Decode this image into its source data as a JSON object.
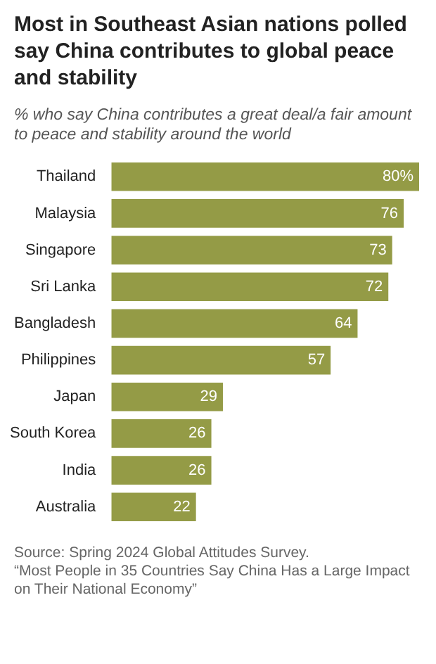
{
  "chart_data": {
    "type": "bar",
    "orientation": "horizontal",
    "title": "Most in Southeast Asian nations polled say China contributes to global peace and stability",
    "subtitle": "% who say China contributes a great deal/a fair amount to peace and stability around the world",
    "categories": [
      "Thailand",
      "Malaysia",
      "Singapore",
      "Sri Lanka",
      "Bangladesh",
      "Philippines",
      "Japan",
      "South Korea",
      "India",
      "Australia"
    ],
    "values": [
      80,
      76,
      73,
      72,
      64,
      57,
      29,
      26,
      26,
      22
    ],
    "value_labels": [
      "80%",
      "76",
      "73",
      "72",
      "64",
      "57",
      "29",
      "26",
      "26",
      "22"
    ],
    "color": "#949b46",
    "legend": false,
    "tick_labels": "y",
    "annotations": [
      "Source: Spring 2024 Global Attitudes Survey.",
      "“Most People in 35 Countries Say China Has a Large Impact on Their National Economy”"
    ]
  }
}
